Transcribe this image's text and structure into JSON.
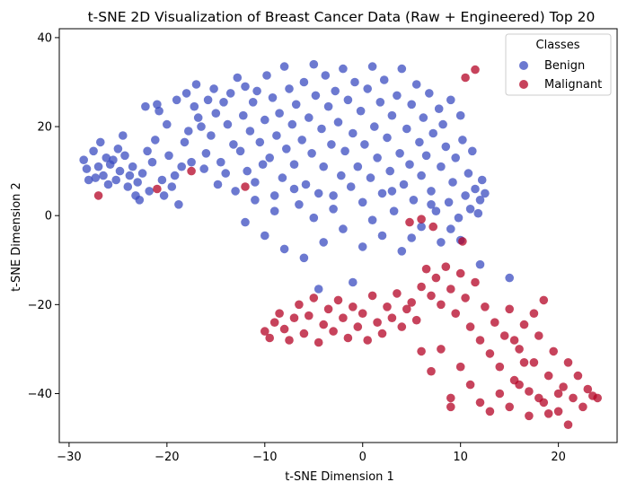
{
  "chart_data": {
    "type": "scatter",
    "title": "t-SNE 2D Visualization of Breast Cancer Data (Raw + Engineered) Top 20",
    "xlabel": "t-SNE Dimension 1",
    "ylabel": "t-SNE Dimension 2",
    "xlim": [
      -31,
      26
    ],
    "ylim": [
      -51,
      42
    ],
    "xticks": [
      -30,
      -20,
      -10,
      0,
      10,
      20
    ],
    "yticks": [
      -40,
      -20,
      0,
      20,
      40
    ],
    "grid": false,
    "legend": {
      "title": "Classes",
      "position": "top-right"
    },
    "series": [
      {
        "name": "Benign",
        "color": "#3b4cc0",
        "points": [
          [
            -28.5,
            12.5
          ],
          [
            -28.2,
            10.5
          ],
          [
            -28,
            8
          ],
          [
            -27.5,
            14.5
          ],
          [
            -27.3,
            8.5
          ],
          [
            -27,
            11
          ],
          [
            -26.8,
            16.5
          ],
          [
            -26.5,
            9
          ],
          [
            -26.2,
            13
          ],
          [
            -26,
            7
          ],
          [
            -25.8,
            11.5
          ],
          [
            -25.5,
            12.5
          ],
          [
            -25.2,
            8
          ],
          [
            -25,
            15
          ],
          [
            -24.8,
            10
          ],
          [
            -24.5,
            18
          ],
          [
            -24.3,
            13.5
          ],
          [
            -24,
            6.5
          ],
          [
            -23.8,
            9
          ],
          [
            -23.5,
            11
          ],
          [
            -23.2,
            4.5
          ],
          [
            -23,
            7.5
          ],
          [
            -22.8,
            3.5
          ],
          [
            -22.5,
            9.5
          ],
          [
            -22.2,
            24.5
          ],
          [
            -22,
            14.5
          ],
          [
            -21.8,
            5.5
          ],
          [
            -21.5,
            12
          ],
          [
            -21.2,
            17
          ],
          [
            -21,
            25
          ],
          [
            -20.8,
            23.5
          ],
          [
            -20.5,
            8
          ],
          [
            -20.3,
            4.5
          ],
          [
            -20,
            20.5
          ],
          [
            -19.8,
            13.5
          ],
          [
            -19.5,
            6.5
          ],
          [
            -19.2,
            9
          ],
          [
            -19,
            26
          ],
          [
            -18.8,
            2.5
          ],
          [
            -18.5,
            11
          ],
          [
            -18.2,
            16.5
          ],
          [
            -18,
            27.5
          ],
          [
            -17.8,
            19
          ],
          [
            -17.5,
            12
          ],
          [
            -17.2,
            24.5
          ],
          [
            -17,
            29.5
          ],
          [
            -16.8,
            22
          ],
          [
            -16.5,
            20
          ],
          [
            -16.2,
            10.5
          ],
          [
            -16,
            14
          ],
          [
            -15.8,
            26
          ],
          [
            -15.5,
            18
          ],
          [
            -15.2,
            28.5
          ],
          [
            -15,
            23
          ],
          [
            -14.8,
            7
          ],
          [
            -14.5,
            12
          ],
          [
            -14.2,
            25.5
          ],
          [
            -14,
            9.5
          ],
          [
            -13.8,
            20.5
          ],
          [
            -13.5,
            27.5
          ],
          [
            -13.2,
            16
          ],
          [
            -13,
            5.5
          ],
          [
            -12.8,
            31
          ],
          [
            -12.5,
            14.5
          ],
          [
            -12.2,
            22.5
          ],
          [
            -12,
            29
          ],
          [
            -11.8,
            10
          ],
          [
            -11.5,
            19
          ],
          [
            -11.2,
            25.5
          ],
          [
            -11,
            7.5
          ],
          [
            -10.8,
            28
          ],
          [
            -10.5,
            16.5
          ],
          [
            -10.2,
            11.5
          ],
          [
            -10,
            21.5
          ],
          [
            -9.8,
            31.5
          ],
          [
            -9.5,
            13
          ],
          [
            -9.2,
            26.5
          ],
          [
            -9,
            4.5
          ],
          [
            -8.8,
            18
          ],
          [
            -8.5,
            23
          ],
          [
            -8.2,
            8.5
          ],
          [
            -8,
            33.5
          ],
          [
            -7.8,
            15
          ],
          [
            -7.5,
            28.5
          ],
          [
            -7.2,
            20.5
          ],
          [
            -7,
            11.5
          ],
          [
            -6.8,
            25
          ],
          [
            -6.5,
            2.5
          ],
          [
            -6.2,
            17
          ],
          [
            -6,
            30
          ],
          [
            -5.8,
            7
          ],
          [
            -5.5,
            22
          ],
          [
            -5.2,
            14
          ],
          [
            -5,
            34
          ],
          [
            -4.8,
            27
          ],
          [
            -4.5,
            5
          ],
          [
            -4.2,
            19.5
          ],
          [
            -4,
            11
          ],
          [
            -3.8,
            31.5
          ],
          [
            -3.5,
            24.5
          ],
          [
            -3.2,
            16
          ],
          [
            -3,
            1.5
          ],
          [
            -2.8,
            28
          ],
          [
            -2.5,
            21
          ],
          [
            -2.2,
            9
          ],
          [
            -2,
            33
          ],
          [
            -1.8,
            14.5
          ],
          [
            -1.5,
            26
          ],
          [
            -1.2,
            6.5
          ],
          [
            -1,
            18.5
          ],
          [
            -0.8,
            30
          ],
          [
            -0.5,
            11
          ],
          [
            -0.2,
            23.5
          ],
          [
            0,
            3
          ],
          [
            0.2,
            16
          ],
          [
            0.5,
            28.5
          ],
          [
            0.8,
            8.5
          ],
          [
            1,
            33.5
          ],
          [
            1.2,
            20
          ],
          [
            1.5,
            13
          ],
          [
            1.8,
            25.5
          ],
          [
            2,
            5
          ],
          [
            2.2,
            30.5
          ],
          [
            2.5,
            17.5
          ],
          [
            2.8,
            10
          ],
          [
            3,
            22.5
          ],
          [
            3.2,
            1
          ],
          [
            3.5,
            27
          ],
          [
            3.8,
            14
          ],
          [
            4,
            33
          ],
          [
            4.2,
            7
          ],
          [
            4.5,
            19.5
          ],
          [
            4.8,
            11.5
          ],
          [
            5,
            25
          ],
          [
            5.2,
            3.5
          ],
          [
            5.5,
            29.5
          ],
          [
            5.8,
            16.5
          ],
          [
            6,
            9
          ],
          [
            6.2,
            22
          ],
          [
            6.5,
            13.5
          ],
          [
            6.8,
            27.5
          ],
          [
            7,
            5.5
          ],
          [
            7.2,
            18.5
          ],
          [
            7.5,
            1
          ],
          [
            7.8,
            24
          ],
          [
            8,
            11
          ],
          [
            8.2,
            20.5
          ],
          [
            8.5,
            15.5
          ],
          [
            8.8,
            3
          ],
          [
            9,
            26
          ],
          [
            9.2,
            7.5
          ],
          [
            9.5,
            13
          ],
          [
            9.8,
            -0.5
          ],
          [
            10,
            22.5
          ],
          [
            10.2,
            17
          ],
          [
            10.5,
            4.5
          ],
          [
            10.8,
            9.5
          ],
          [
            11,
            1.5
          ],
          [
            11.2,
            14.5
          ],
          [
            11.5,
            6
          ],
          [
            11.8,
            0.5
          ],
          [
            12,
            3.5
          ],
          [
            12.2,
            8
          ],
          [
            12.5,
            5
          ],
          [
            -10,
            -4.5
          ],
          [
            -8,
            -7.5
          ],
          [
            -6,
            -9.5
          ],
          [
            -4,
            -6
          ],
          [
            -2,
            -3
          ],
          [
            0,
            -7
          ],
          [
            2,
            -4.5
          ],
          [
            4,
            -8
          ],
          [
            6,
            -2.5
          ],
          [
            8,
            -6
          ],
          [
            10,
            -5.5
          ],
          [
            12,
            -11
          ],
          [
            -1,
            -15
          ],
          [
            -4.5,
            -16.5
          ],
          [
            15,
            -14
          ],
          [
            -12,
            -1.5
          ],
          [
            -5,
            -0.5
          ],
          [
            -3,
            4.5
          ],
          [
            1,
            -1
          ],
          [
            3,
            5.5
          ],
          [
            5,
            -5
          ],
          [
            7,
            2.5
          ],
          [
            9,
            -3
          ],
          [
            -7,
            6
          ],
          [
            -9,
            1
          ],
          [
            -11,
            3.5
          ]
        ]
      },
      {
        "name": "Malignant",
        "color": "#b40426",
        "points": [
          [
            -27,
            4.5
          ],
          [
            -21,
            6
          ],
          [
            -17.5,
            10
          ],
          [
            -12,
            6.5
          ],
          [
            4.8,
            -1.5
          ],
          [
            6,
            -0.8
          ],
          [
            7.2,
            -2.5
          ],
          [
            10.2,
            -5.8
          ],
          [
            10.5,
            31
          ],
          [
            11.5,
            32.8
          ],
          [
            -10,
            -26
          ],
          [
            -9.5,
            -27.5
          ],
          [
            -9,
            -24
          ],
          [
            -8.5,
            -22
          ],
          [
            -8,
            -25.5
          ],
          [
            -7.5,
            -28
          ],
          [
            -7,
            -23
          ],
          [
            -6.5,
            -20
          ],
          [
            -6,
            -26.5
          ],
          [
            -5.5,
            -22.5
          ],
          [
            -5,
            -18.5
          ],
          [
            -4.5,
            -28.5
          ],
          [
            -4,
            -24.5
          ],
          [
            -3.5,
            -21
          ],
          [
            -3,
            -26
          ],
          [
            -2.5,
            -19
          ],
          [
            -2,
            -23
          ],
          [
            -1.5,
            -27.5
          ],
          [
            -1,
            -20.5
          ],
          [
            -0.5,
            -25
          ],
          [
            0,
            -22
          ],
          [
            0.5,
            -28
          ],
          [
            1,
            -18
          ],
          [
            1.5,
            -24
          ],
          [
            2,
            -26.5
          ],
          [
            2.5,
            -20.5
          ],
          [
            3,
            -23
          ],
          [
            3.5,
            -17.5
          ],
          [
            4,
            -25
          ],
          [
            4.5,
            -21
          ],
          [
            5,
            -19.5
          ],
          [
            5.5,
            -23.5
          ],
          [
            6,
            -16
          ],
          [
            6.5,
            -12
          ],
          [
            7,
            -18
          ],
          [
            7.5,
            -14
          ],
          [
            8,
            -20
          ],
          [
            8.5,
            -11.5
          ],
          [
            9,
            -16.5
          ],
          [
            9.5,
            -22
          ],
          [
            10,
            -13
          ],
          [
            10.5,
            -18.5
          ],
          [
            11,
            -25
          ],
          [
            11.5,
            -15
          ],
          [
            12,
            -28
          ],
          [
            12.5,
            -20.5
          ],
          [
            13,
            -31
          ],
          [
            13.5,
            -24
          ],
          [
            14,
            -34
          ],
          [
            14.5,
            -27
          ],
          [
            15,
            -21
          ],
          [
            15.5,
            -37
          ],
          [
            16,
            -30
          ],
          [
            16.5,
            -24.5
          ],
          [
            17,
            -39.5
          ],
          [
            17.5,
            -33
          ],
          [
            18,
            -27
          ],
          [
            18.5,
            -42
          ],
          [
            19,
            -36
          ],
          [
            19.5,
            -30.5
          ],
          [
            20,
            -44
          ],
          [
            20.5,
            -38.5
          ],
          [
            21,
            -33
          ],
          [
            21.5,
            -41
          ],
          [
            22,
            -36
          ],
          [
            22.5,
            -43
          ],
          [
            23,
            -39
          ],
          [
            23.5,
            -40.5
          ],
          [
            24,
            -41
          ],
          [
            21,
            -47
          ],
          [
            9,
            -41
          ],
          [
            9,
            -43
          ],
          [
            8,
            -30
          ],
          [
            7,
            -35
          ],
          [
            6,
            -30.5
          ],
          [
            10,
            -34
          ],
          [
            11,
            -38
          ],
          [
            12,
            -42
          ],
          [
            13,
            -44
          ],
          [
            14,
            -40
          ],
          [
            15,
            -43
          ],
          [
            16,
            -38
          ],
          [
            17,
            -45
          ],
          [
            18,
            -41
          ],
          [
            19,
            -44.5
          ],
          [
            20,
            -40
          ],
          [
            16.5,
            -33
          ],
          [
            15.5,
            -28
          ],
          [
            17.5,
            -22
          ],
          [
            18.5,
            -19
          ]
        ]
      }
    ]
  }
}
